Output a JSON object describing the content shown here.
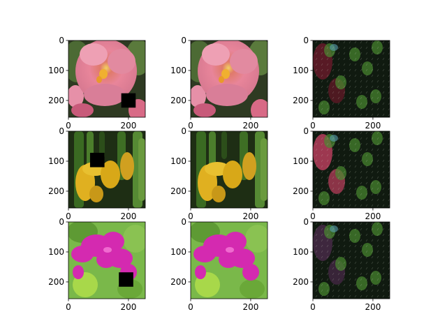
{
  "figure": {
    "background": "#ffffff",
    "grid": {
      "rows": 3,
      "cols": 3
    },
    "x_ticks": [
      "0",
      "200"
    ],
    "y_ticks": [
      "0",
      "100",
      "200"
    ],
    "x_tick_values": [
      0,
      200
    ],
    "y_tick_values": [
      0,
      100,
      200
    ],
    "image_extent": [
      256,
      256
    ],
    "panels": [
      {
        "name": "flower1-masked",
        "content": "pink-flower",
        "mask": {
          "x": 176,
          "y": 176,
          "size": 48
        }
      },
      {
        "name": "flower1-original",
        "content": "pink-flower"
      },
      {
        "name": "flower1-reconstruction",
        "content": "reconstruction",
        "tint": "#6a1a2a"
      },
      {
        "name": "flower2-masked",
        "content": "yellow-iris",
        "mask": {
          "x": 72,
          "y": 72,
          "size": 48
        }
      },
      {
        "name": "flower2-original",
        "content": "yellow-iris"
      },
      {
        "name": "flower2-reconstruction",
        "content": "reconstruction",
        "tint": "#c04060"
      },
      {
        "name": "flower3-masked",
        "content": "magenta-bougainvillea",
        "mask": {
          "x": 168,
          "y": 168,
          "size": 48
        }
      },
      {
        "name": "flower3-original",
        "content": "magenta-bougainvillea"
      },
      {
        "name": "flower3-reconstruction",
        "content": "reconstruction",
        "tint": "#4a2a4a"
      }
    ],
    "colors": {
      "pink_petal": "#e8859a",
      "pink_dark": "#b84c66",
      "yellow_petal": "#e0b020",
      "magenta_petal": "#d42ab0",
      "leaf_green": "#6aa838",
      "dark_bg": "#101a10",
      "recon_green": "#4a8a30"
    }
  }
}
